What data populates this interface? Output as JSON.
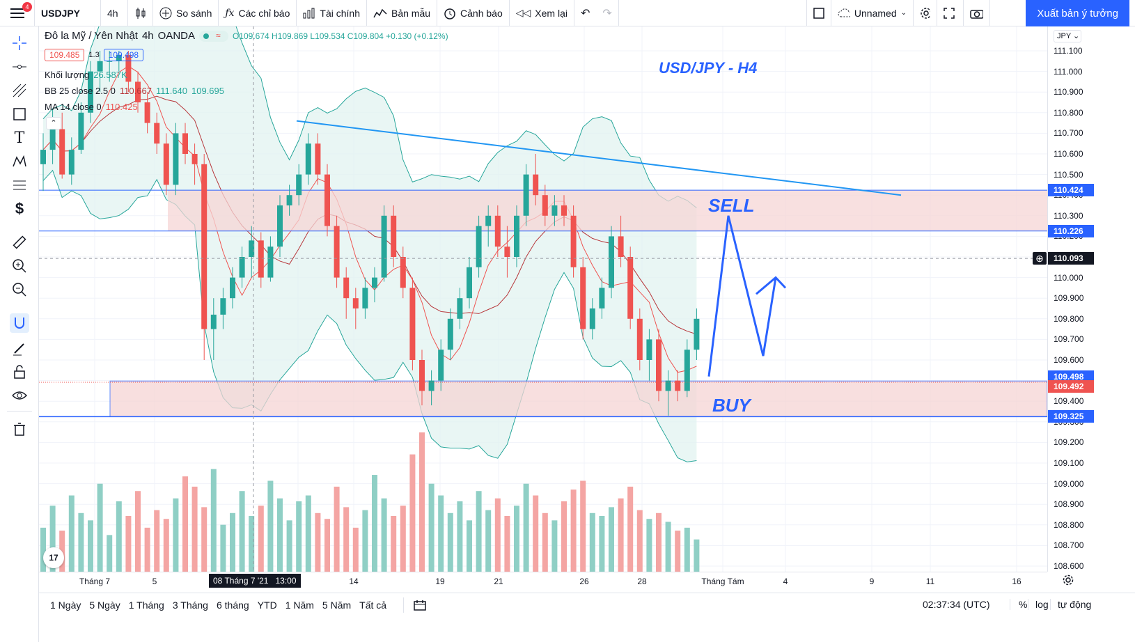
{
  "topbar": {
    "menu_badge": "4",
    "symbol": "USDJPY",
    "interval": "4h",
    "compare": "So sánh",
    "indicators": "Các chỉ báo",
    "financials": "Tài chính",
    "templates": "Bản mẫu",
    "alerts": "Cảnh báo",
    "replay": "Xem lại",
    "layout_name": "Unnamed",
    "publish": "Xuất bản ý tưởng"
  },
  "legend": {
    "title": "Đô la Mỹ / Yên Nhật",
    "interval": "4h",
    "exchange": "OANDA",
    "ohlc": "O109.674 H109.869 L109.534 C109.804 +0.130 (+0.12%)",
    "bid": "109.485",
    "spread": "1.3",
    "ask": "109.498",
    "volume_label": "Khối lượng",
    "volume_value": "26.587K",
    "bb_label": "BB 25 close 2.5 0",
    "bb_v1": "110.667",
    "bb_v2": "111.640",
    "bb_v3": "109.695",
    "ma_label": "MA 14 close 0",
    "ma_value": "110.425"
  },
  "annotations": {
    "title": "USD/JPY - H4",
    "sell": "SELL",
    "buy": "BUY"
  },
  "price_axis": {
    "currency": "JPY",
    "ticks": [
      "111.100",
      "111.000",
      "110.900",
      "110.800",
      "110.700",
      "110.600",
      "110.500",
      "110.400",
      "110.300",
      "110.200",
      "110.100",
      "110.000",
      "109.900",
      "109.800",
      "109.700",
      "109.600",
      "109.500",
      "109.400",
      "109.300",
      "109.200",
      "109.100",
      "109.000",
      "108.900",
      "108.800",
      "108.700",
      "108.600"
    ],
    "tag_sell_top": "110.424",
    "tag_sell_bottom": "110.226",
    "tag_crosshair": "110.093",
    "tag_ask": "109.498",
    "tag_last": "109.492",
    "tag_buy_bottom": "109.325"
  },
  "time_axis": {
    "labels": [
      "Tháng 7",
      "5",
      "2",
      "14",
      "19",
      "21",
      "26",
      "28",
      "Tháng Tám",
      "4",
      "9",
      "11",
      "16"
    ],
    "crosshair": "08 Tháng 7 '21   13:00"
  },
  "bottombar": {
    "ranges": [
      "1 Ngày",
      "5 Ngày",
      "1 Tháng",
      "3 Tháng",
      "6 tháng",
      "YTD",
      "1 Năm",
      "5 Năm",
      "Tất cả"
    ],
    "clock": "02:37:34 (UTC)",
    "percent": "%",
    "log": "log",
    "auto": "tự động"
  },
  "colors": {
    "up": "#26a69a",
    "down": "#ef5350",
    "accent": "#2962ff",
    "zone": "#f6d5d5",
    "bb_fill": "#e0f2ef"
  },
  "chart_data": {
    "type": "candlestick",
    "symbol": "USDJPY",
    "interval": "4h",
    "ylim": [
      108.55,
      111.15
    ],
    "zones": {
      "sell": [
        110.226,
        110.424
      ],
      "buy": [
        109.325,
        109.498
      ]
    },
    "ohlc": [
      [
        110.55,
        110.7,
        110.42,
        110.62
      ],
      [
        110.62,
        110.82,
        110.55,
        110.72
      ],
      [
        110.72,
        110.8,
        110.48,
        110.5
      ],
      [
        110.5,
        110.68,
        110.45,
        110.62
      ],
      [
        110.62,
        110.85,
        110.6,
        110.8
      ],
      [
        110.8,
        111.05,
        110.75,
        111.0
      ],
      [
        111.0,
        111.1,
        110.9,
        111.05
      ],
      [
        111.05,
        111.1,
        110.95,
        111.05
      ],
      [
        111.05,
        111.1,
        111.0,
        111.08
      ],
      [
        111.08,
        111.1,
        110.9,
        110.95
      ],
      [
        110.95,
        111.0,
        110.8,
        110.85
      ],
      [
        110.85,
        110.9,
        110.7,
        110.75
      ],
      [
        110.75,
        110.8,
        110.6,
        110.65
      ],
      [
        110.65,
        110.7,
        110.4,
        110.45
      ],
      [
        110.45,
        110.75,
        110.4,
        110.7
      ],
      [
        110.7,
        110.75,
        110.55,
        110.6
      ],
      [
        110.6,
        110.65,
        110.45,
        110.55
      ],
      [
        110.55,
        110.6,
        109.6,
        109.75
      ],
      [
        109.75,
        109.9,
        109.6,
        109.82
      ],
      [
        109.82,
        109.95,
        109.75,
        109.9
      ],
      [
        109.9,
        110.05,
        109.85,
        110.0
      ],
      [
        110.0,
        110.15,
        109.95,
        110.1
      ],
      [
        110.1,
        110.25,
        110.0,
        110.18
      ],
      [
        110.18,
        110.22,
        109.95,
        110.0
      ],
      [
        110.0,
        110.2,
        109.98,
        110.15
      ],
      [
        110.15,
        110.4,
        110.1,
        110.35
      ],
      [
        110.35,
        110.45,
        110.3,
        110.4
      ],
      [
        110.4,
        110.55,
        110.35,
        110.5
      ],
      [
        110.5,
        110.7,
        110.45,
        110.65
      ],
      [
        110.65,
        110.7,
        110.45,
        110.5
      ],
      [
        110.5,
        110.55,
        110.2,
        110.25
      ],
      [
        110.25,
        110.3,
        109.95,
        110.0
      ],
      [
        110.0,
        110.05,
        109.8,
        109.9
      ],
      [
        109.9,
        109.95,
        109.75,
        109.85
      ],
      [
        109.85,
        110.0,
        109.8,
        109.95
      ],
      [
        109.95,
        110.05,
        109.88,
        110.0
      ],
      [
        110.0,
        110.35,
        109.98,
        110.3
      ],
      [
        110.3,
        110.35,
        110.05,
        110.1
      ],
      [
        110.1,
        110.15,
        109.9,
        109.95
      ],
      [
        109.95,
        110.0,
        109.55,
        109.6
      ],
      [
        109.6,
        109.65,
        109.38,
        109.45
      ],
      [
        109.45,
        109.55,
        109.38,
        109.5
      ],
      [
        109.5,
        109.7,
        109.45,
        109.65
      ],
      [
        109.65,
        109.85,
        109.6,
        109.8
      ],
      [
        109.8,
        109.95,
        109.75,
        109.9
      ],
      [
        109.9,
        110.1,
        109.85,
        110.05
      ],
      [
        110.05,
        110.3,
        110.0,
        110.25
      ],
      [
        110.25,
        110.35,
        110.15,
        110.3
      ],
      [
        110.3,
        110.35,
        110.1,
        110.15
      ],
      [
        110.15,
        110.25,
        110.0,
        110.1
      ],
      [
        110.1,
        110.35,
        110.05,
        110.3
      ],
      [
        110.3,
        110.55,
        110.25,
        110.5
      ],
      [
        110.5,
        110.6,
        110.35,
        110.4
      ],
      [
        110.4,
        110.45,
        110.25,
        110.3
      ],
      [
        110.3,
        110.4,
        110.25,
        110.35
      ],
      [
        110.35,
        110.4,
        110.25,
        110.3
      ],
      [
        110.3,
        110.35,
        110.0,
        110.05
      ],
      [
        110.05,
        110.1,
        109.7,
        109.75
      ],
      [
        109.75,
        109.9,
        109.7,
        109.85
      ],
      [
        109.85,
        110.0,
        109.8,
        109.95
      ],
      [
        109.95,
        110.25,
        109.9,
        110.2
      ],
      [
        110.2,
        110.3,
        110.05,
        110.1
      ],
      [
        110.1,
        110.15,
        109.75,
        109.8
      ],
      [
        109.8,
        109.85,
        109.55,
        109.6
      ],
      [
        109.6,
        109.75,
        109.5,
        109.7
      ],
      [
        109.7,
        109.75,
        109.4,
        109.45
      ],
      [
        109.45,
        109.55,
        109.33,
        109.5
      ],
      [
        109.5,
        109.55,
        109.4,
        109.45
      ],
      [
        109.45,
        109.7,
        109.42,
        109.65
      ],
      [
        109.65,
        109.85,
        109.6,
        109.8
      ]
    ],
    "volumes": [
      30,
      45,
      28,
      52,
      40,
      35,
      60,
      25,
      48,
      38,
      55,
      30,
      42,
      36,
      50,
      65,
      58,
      44,
      70,
      32,
      40,
      55,
      38,
      45,
      62,
      50,
      35,
      48,
      52,
      40,
      36,
      58,
      44,
      30,
      42,
      66,
      50,
      38,
      45,
      80,
      95,
      60,
      52,
      40,
      48,
      35,
      55,
      42,
      50,
      38,
      45,
      60,
      52,
      40,
      35,
      48,
      56,
      62,
      40,
      38,
      44,
      50,
      58,
      42,
      36,
      40,
      34,
      28,
      30,
      22
    ],
    "crosshair_price": 110.093,
    "last_price": 109.492
  }
}
